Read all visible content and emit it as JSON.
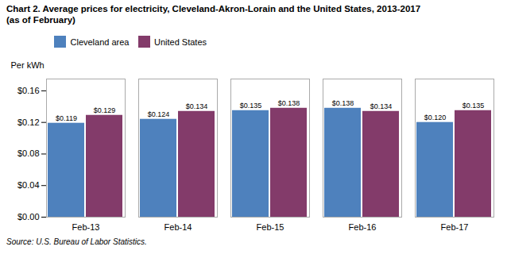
{
  "chart_data": {
    "type": "bar",
    "title": "Chart 2. Average prices for electricity, Cleveland-Akron-Lorain and the United States, 2013-2017",
    "subtitle": "(as of February)",
    "ylabel": "Per kWh",
    "categories": [
      "Feb-13",
      "Feb-14",
      "Feb-15",
      "Feb-16",
      "Feb-17"
    ],
    "series": [
      {
        "name": "Cleveland area",
        "color": "#4E81BD",
        "values": [
          0.119,
          0.124,
          0.135,
          0.138,
          0.12
        ],
        "value_labels": [
          "$0.119",
          "$0.124",
          "$0.135",
          "$0.138",
          "$0.120"
        ]
      },
      {
        "name": "United States",
        "color": "#833B6A",
        "values": [
          0.129,
          0.134,
          0.138,
          0.134,
          0.135
        ],
        "value_labels": [
          "$0.129",
          "$0.134",
          "$0.138",
          "$0.134",
          "$0.135"
        ]
      }
    ],
    "ylim": [
      0.0,
      0.175
    ],
    "yticks": [
      {
        "value": 0.0,
        "label": "$0.00"
      },
      {
        "value": 0.04,
        "label": "$0.04"
      },
      {
        "value": 0.08,
        "label": "$0.08"
      },
      {
        "value": 0.12,
        "label": "$0.12"
      },
      {
        "value": 0.16,
        "label": "$0.16"
      }
    ],
    "grid": false,
    "legend": "top",
    "data_labels": true,
    "annotations": [
      "Source: U.S. Bureau of Labor Statistics."
    ]
  }
}
